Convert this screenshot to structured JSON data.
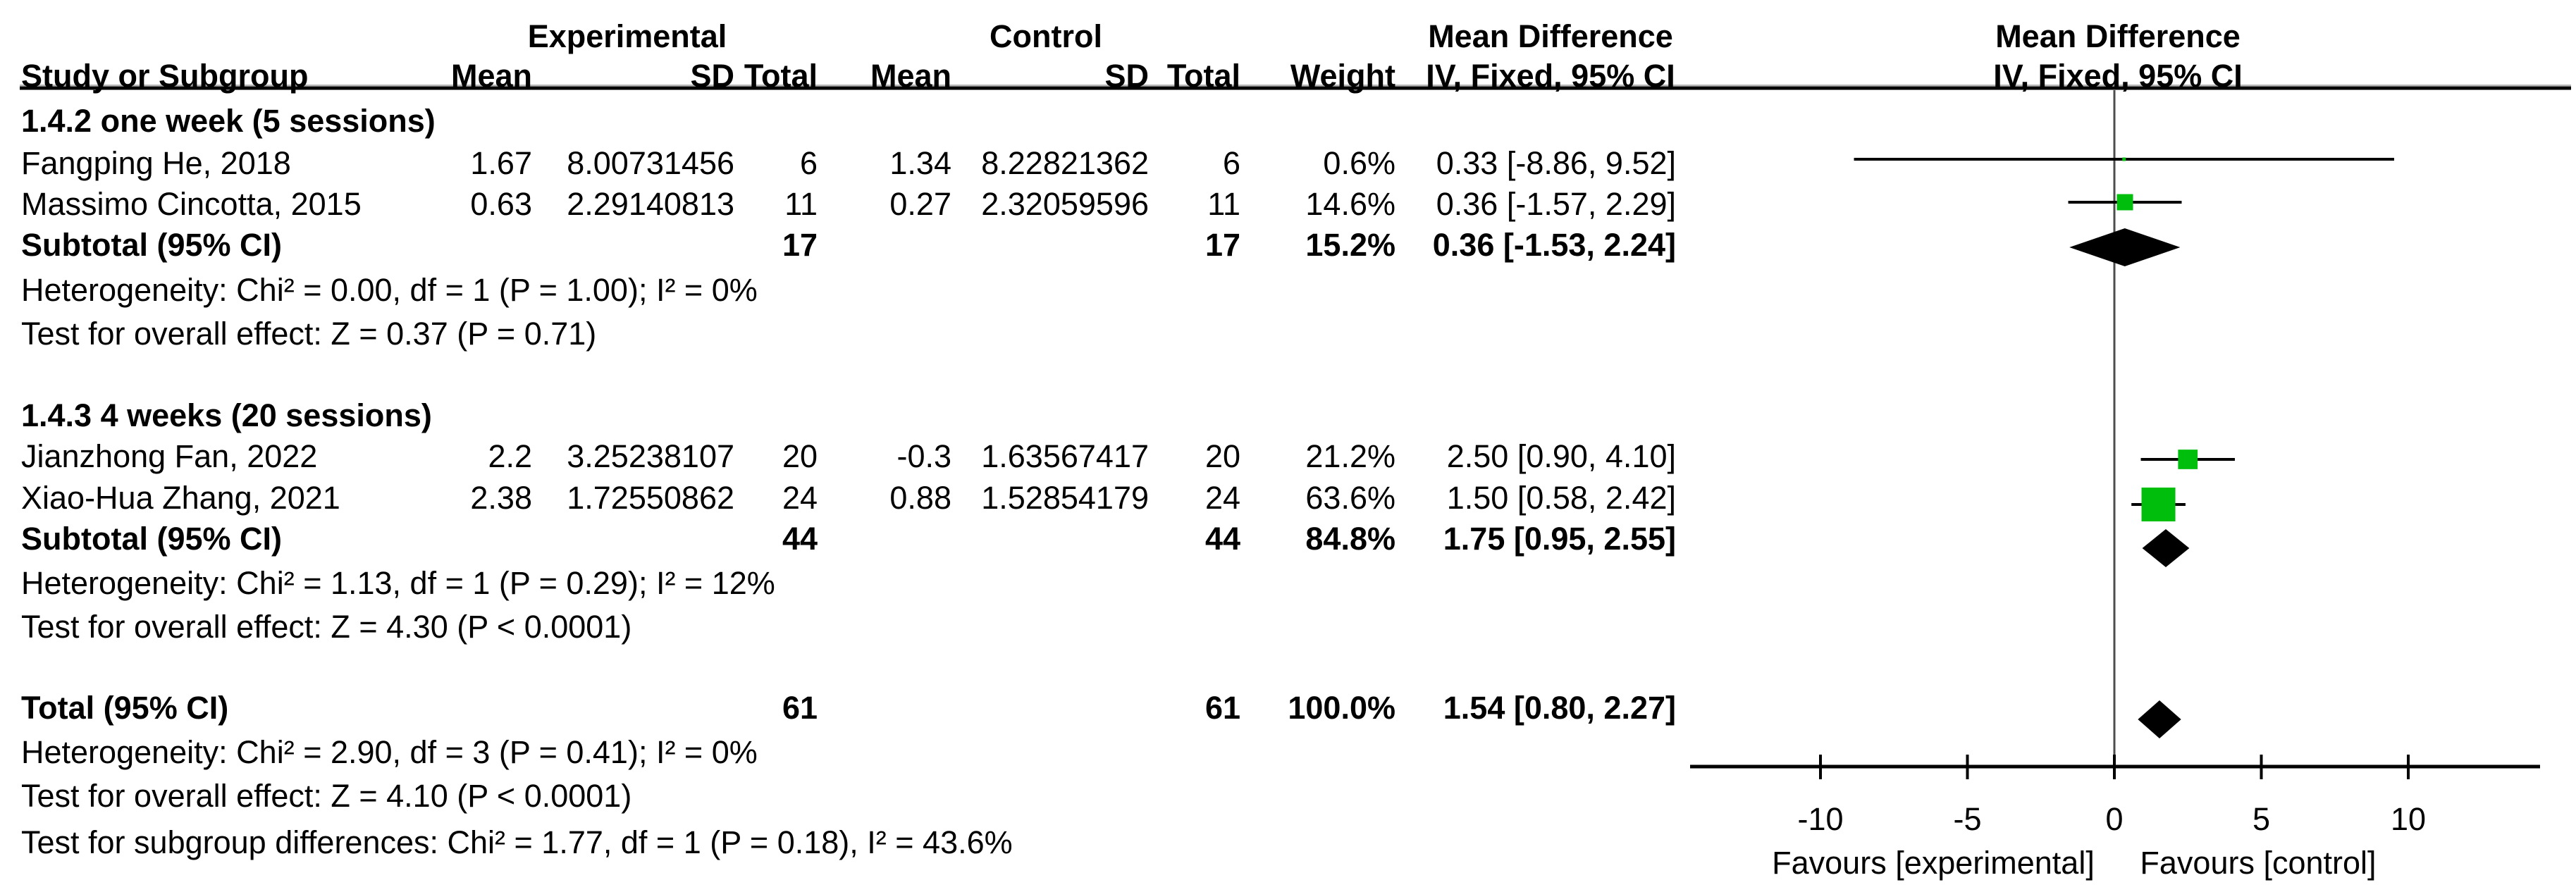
{
  "report": {
    "group_headers": {
      "experimental": "Experimental",
      "control": "Control",
      "mean_difference": "Mean Difference",
      "mean_difference_plot": "Mean Difference"
    },
    "column_headers": {
      "study": "Study or Subgroup",
      "mean": "Mean",
      "sd": "SD",
      "total": "Total",
      "weight": "Weight",
      "ci": "IV, Fixed, 95% CI",
      "ci_plot": "IV, Fixed, 95% CI"
    },
    "subgroup1": {
      "title": "1.4.2 one week (5 sessions)",
      "study1": {
        "name": "Fangping He, 2018",
        "mean_e": "1.67",
        "sd_e": "8.00731456",
        "total_e": "6",
        "mean_c": "1.34",
        "sd_c": "8.22821362",
        "total_c": "6",
        "weight": "0.6%",
        "ci": "0.33 [-8.86, 9.52]"
      },
      "study2": {
        "name": "Massimo Cincotta, 2015",
        "mean_e": "0.63",
        "sd_e": "2.29140813",
        "total_e": "11",
        "mean_c": "0.27",
        "sd_c": "2.32059596",
        "total_c": "11",
        "weight": "14.6%",
        "ci": "0.36 [-1.57, 2.29]"
      },
      "subtotal": {
        "label": "Subtotal (95% CI)",
        "total_e": "17",
        "total_c": "17",
        "weight": "15.2%",
        "ci": "0.36 [-1.53, 2.24]"
      },
      "heterogeneity": "Heterogeneity: Chi² = 0.00, df = 1 (P = 1.00); I² = 0%",
      "overall_effect": "Test for overall effect: Z = 0.37 (P = 0.71)"
    },
    "subgroup2": {
      "title": "1.4.3 4 weeks (20 sessions)",
      "study1": {
        "name": "Jianzhong Fan, 2022",
        "mean_e": "2.2",
        "sd_e": "3.25238107",
        "total_e": "20",
        "mean_c": "-0.3",
        "sd_c": "1.63567417",
        "total_c": "20",
        "weight": "21.2%",
        "ci": "2.50 [0.90, 4.10]"
      },
      "study2": {
        "name": "Xiao-Hua Zhang, 2021",
        "mean_e": "2.38",
        "sd_e": "1.72550862",
        "total_e": "24",
        "mean_c": "0.88",
        "sd_c": "1.52854179",
        "total_c": "24",
        "weight": "63.6%",
        "ci": "1.50 [0.58, 2.42]"
      },
      "subtotal": {
        "label": "Subtotal (95% CI)",
        "total_e": "44",
        "total_c": "44",
        "weight": "84.8%",
        "ci": "1.75 [0.95, 2.55]"
      },
      "heterogeneity": "Heterogeneity: Chi² = 1.13, df = 1 (P = 0.29); I² = 12%",
      "overall_effect": "Test for overall effect: Z = 4.30 (P < 0.0001)"
    },
    "total": {
      "label": "Total (95% CI)",
      "total_e": "61",
      "total_c": "61",
      "weight": "100.0%",
      "ci": "1.54 [0.80, 2.27]"
    },
    "total_heterogeneity": "Heterogeneity: Chi² = 2.90, df = 3 (P = 0.41); I² = 0%",
    "total_overall_effect": "Test for overall effect: Z = 4.10 (P < 0.0001)",
    "subgroup_differences": "Test for subgroup differences: Chi² = 1.77, df = 1 (P = 0.18), I² = 43.6%"
  },
  "plot": {
    "marker_color": "#00be0c",
    "line_color": "#000000",
    "diamond_color": "#000000",
    "zero_line_color": "#4d4d4d",
    "tick_labels": [
      "-10",
      "-5",
      "0",
      "5",
      "10"
    ],
    "favours_left": "Favours [experimental]",
    "favours_right": "Favours [control]"
  },
  "chart_data": {
    "type": "scatter",
    "variant": "forest_plot",
    "title": "Mean Difference — IV, Fixed, 95% CI",
    "effect_measure": "Mean Difference",
    "method": "IV, Fixed, 95% CI",
    "x_ticks": [
      -10,
      -5,
      0,
      5,
      10
    ],
    "xlim": [
      -14.4,
      14.5
    ],
    "favours": [
      "Favours [experimental]",
      "Favours [control]"
    ],
    "subgroups": [
      {
        "name": "1.4.2 one week (5 sessions)",
        "studies": [
          {
            "study": "Fangping He, 2018",
            "mean_exp": 1.67,
            "sd_exp": 8.00731456,
            "n_exp": 6,
            "mean_ctrl": 1.34,
            "sd_ctrl": 8.22821362,
            "n_ctrl": 6,
            "weight_pct": 0.6,
            "md": 0.33,
            "ci_low": -8.86,
            "ci_high": 9.52
          },
          {
            "study": "Massimo Cincotta, 2015",
            "mean_exp": 0.63,
            "sd_exp": 2.29140813,
            "n_exp": 11,
            "mean_ctrl": 0.27,
            "sd_ctrl": 2.32059596,
            "n_ctrl": 11,
            "weight_pct": 14.6,
            "md": 0.36,
            "ci_low": -1.57,
            "ci_high": 2.29
          }
        ],
        "subtotal": {
          "n_exp": 17,
          "n_ctrl": 17,
          "weight_pct": 15.2,
          "md": 0.36,
          "ci_low": -1.53,
          "ci_high": 2.24
        },
        "heterogeneity": {
          "chi2": 0.0,
          "df": 1,
          "p": "1.00",
          "i2_pct": 0
        },
        "overall_effect": {
          "z": 0.37,
          "p": "0.71"
        }
      },
      {
        "name": "1.4.3 4 weeks (20 sessions)",
        "studies": [
          {
            "study": "Jianzhong Fan, 2022",
            "mean_exp": 2.2,
            "sd_exp": 3.25238107,
            "n_exp": 20,
            "mean_ctrl": -0.3,
            "sd_ctrl": 1.63567417,
            "n_ctrl": 20,
            "weight_pct": 21.2,
            "md": 2.5,
            "ci_low": 0.9,
            "ci_high": 4.1
          },
          {
            "study": "Xiao-Hua Zhang, 2021",
            "mean_exp": 2.38,
            "sd_exp": 1.72550862,
            "n_exp": 24,
            "mean_ctrl": 0.88,
            "sd_ctrl": 1.52854179,
            "n_ctrl": 24,
            "weight_pct": 63.6,
            "md": 1.5,
            "ci_low": 0.58,
            "ci_high": 2.42
          }
        ],
        "subtotal": {
          "n_exp": 44,
          "n_ctrl": 44,
          "weight_pct": 84.8,
          "md": 1.75,
          "ci_low": 0.95,
          "ci_high": 2.55
        },
        "heterogeneity": {
          "chi2": 1.13,
          "df": 1,
          "p": "0.29",
          "i2_pct": 12
        },
        "overall_effect": {
          "z": 4.3,
          "p": "< 0.0001"
        }
      }
    ],
    "total": {
      "n_exp": 61,
      "n_ctrl": 61,
      "weight_pct": 100.0,
      "md": 1.54,
      "ci_low": 0.8,
      "ci_high": 2.27
    },
    "total_heterogeneity": {
      "chi2": 2.9,
      "df": 3,
      "p": "0.41",
      "i2_pct": 0
    },
    "total_overall_effect": {
      "z": 4.1,
      "p": "< 0.0001"
    },
    "subgroup_differences": {
      "chi2": 1.77,
      "df": 1,
      "p": "0.18",
      "i2_pct": 43.6
    }
  }
}
